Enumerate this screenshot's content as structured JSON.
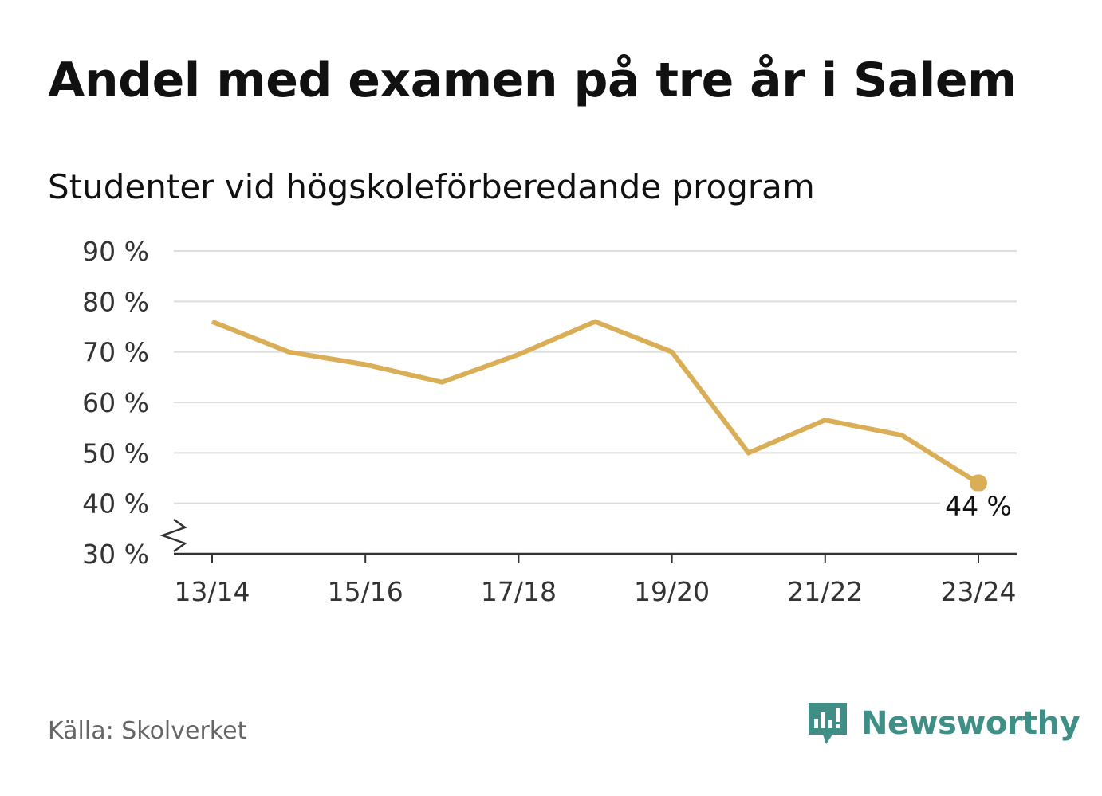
{
  "header": {
    "title": "Andel med examen på tre år i Salem",
    "subtitle": "Studenter vid högskoleförberedande program"
  },
  "footer": {
    "source": "Källa: Skolverket",
    "brand": "Newsworthy"
  },
  "colors": {
    "line": "#d9ae57",
    "grid": "#dddddd",
    "axis": "#333333",
    "brand": "#3f8f86"
  },
  "chart_data": {
    "type": "line",
    "x": [
      "13/14",
      "14/15",
      "15/16",
      "16/17",
      "17/18",
      "18/19",
      "19/20",
      "20/21",
      "21/22",
      "22/23",
      "23/24"
    ],
    "x_tick_labels": [
      "13/14",
      "15/16",
      "17/18",
      "19/20",
      "21/22",
      "23/24"
    ],
    "series": [
      {
        "values": [
          76,
          70,
          67.5,
          64,
          69.5,
          76,
          70,
          50,
          56.5,
          53.5,
          44
        ]
      }
    ],
    "y_ticks": [
      30,
      40,
      50,
      60,
      70,
      80,
      90
    ],
    "y_tick_labels": [
      "30 %",
      "40 %",
      "50 %",
      "60 %",
      "70 %",
      "80 %",
      "90 %"
    ],
    "ylim": [
      30,
      90
    ],
    "y_axis_break": true,
    "grid": true,
    "end_label": "44 %"
  }
}
